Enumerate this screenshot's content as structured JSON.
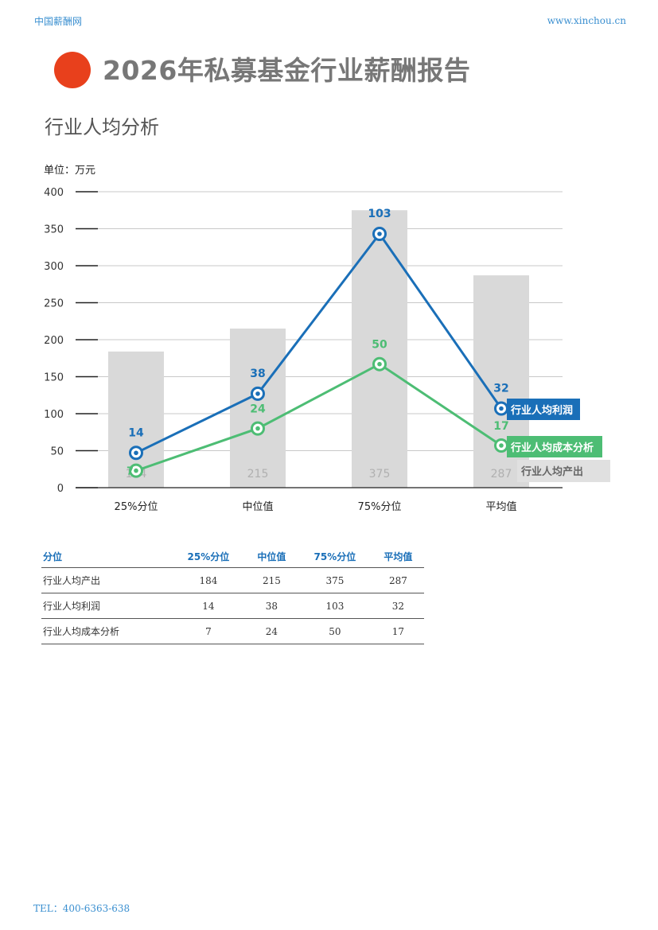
{
  "header": {
    "site_name": "中国薪酬网",
    "site_url": "www.xinchou.cn"
  },
  "report_title": "2026年私募基金行业薪酬报告",
  "section_title": "行业人均分析",
  "chart_data": {
    "type": "bar",
    "unit_label": "单位：万元",
    "categories": [
      "25%分位",
      "中位值",
      "75%分位",
      "平均值"
    ],
    "ylim": [
      0,
      400
    ],
    "yticks": [
      0,
      50,
      100,
      150,
      200,
      250,
      300,
      350,
      400
    ],
    "grid": true,
    "series": [
      {
        "name": "行业人均产出",
        "kind": "bar",
        "values": [
          184,
          215,
          375,
          287
        ],
        "color": "#d9d9d9",
        "label_color": "#b0b0b0"
      },
      {
        "name": "行业人均利润",
        "kind": "line",
        "values": [
          14,
          38,
          103,
          32
        ],
        "plot_values": [
          47,
          127,
          343,
          107
        ],
        "color": "#1a6fb8"
      },
      {
        "name": "行业人均成本分析",
        "kind": "line",
        "values": [
          7,
          24,
          50,
          17
        ],
        "plot_values": [
          23,
          80,
          167,
          57
        ],
        "color": "#4dbd74"
      }
    ]
  },
  "table": {
    "headers": [
      "分位",
      "25%分位",
      "中位值",
      "75%分位",
      "平均值"
    ],
    "rows": [
      [
        "行业人均产出",
        "184",
        "215",
        "375",
        "287"
      ],
      [
        "行业人均利润",
        "14",
        "38",
        "103",
        "32"
      ],
      [
        "行业人均成本分析",
        "7",
        "24",
        "50",
        "17"
      ]
    ]
  },
  "footer": {
    "tel": "TEL：400-6363-638"
  }
}
